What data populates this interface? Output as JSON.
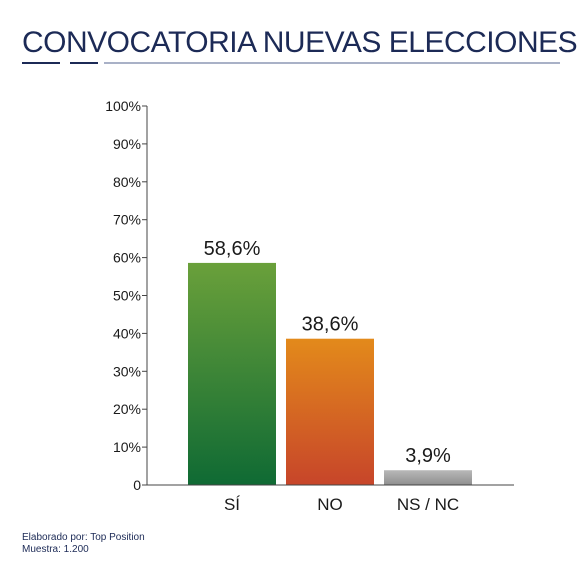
{
  "header": {
    "title": "CONVOCATORIA NUEVAS ELECCIONES"
  },
  "footer": {
    "credit": "Elaborado por: Top Position",
    "sample": "Muestra: 1.200"
  },
  "colors": {
    "title": "#1c2a56",
    "rule_dark": "#1c2a56",
    "rule_light": "#a9b1c7",
    "axis": "#444444",
    "text": "#1a1a1a",
    "si_top": "#6aa03a",
    "si_bottom": "#0f6a34",
    "no_top": "#e38a1b",
    "no_bottom": "#c7452a",
    "ns_top": "#b8b8b8",
    "ns_bottom": "#8f8f8f"
  },
  "chart_data": {
    "type": "bar",
    "title": "",
    "xlabel": "",
    "ylabel": "",
    "ylim": [
      0,
      100
    ],
    "yticks": [
      "0",
      "10%",
      "20%",
      "30%",
      "40%",
      "50%",
      "60%",
      "70%",
      "80%",
      "90%",
      "100%"
    ],
    "categories": [
      "SÍ",
      "NO",
      "NS / NC"
    ],
    "values": [
      58.6,
      38.6,
      3.9
    ],
    "value_labels": [
      "58,6%",
      "38,6%",
      "3,9%"
    ],
    "grid": false,
    "legend": "none"
  }
}
